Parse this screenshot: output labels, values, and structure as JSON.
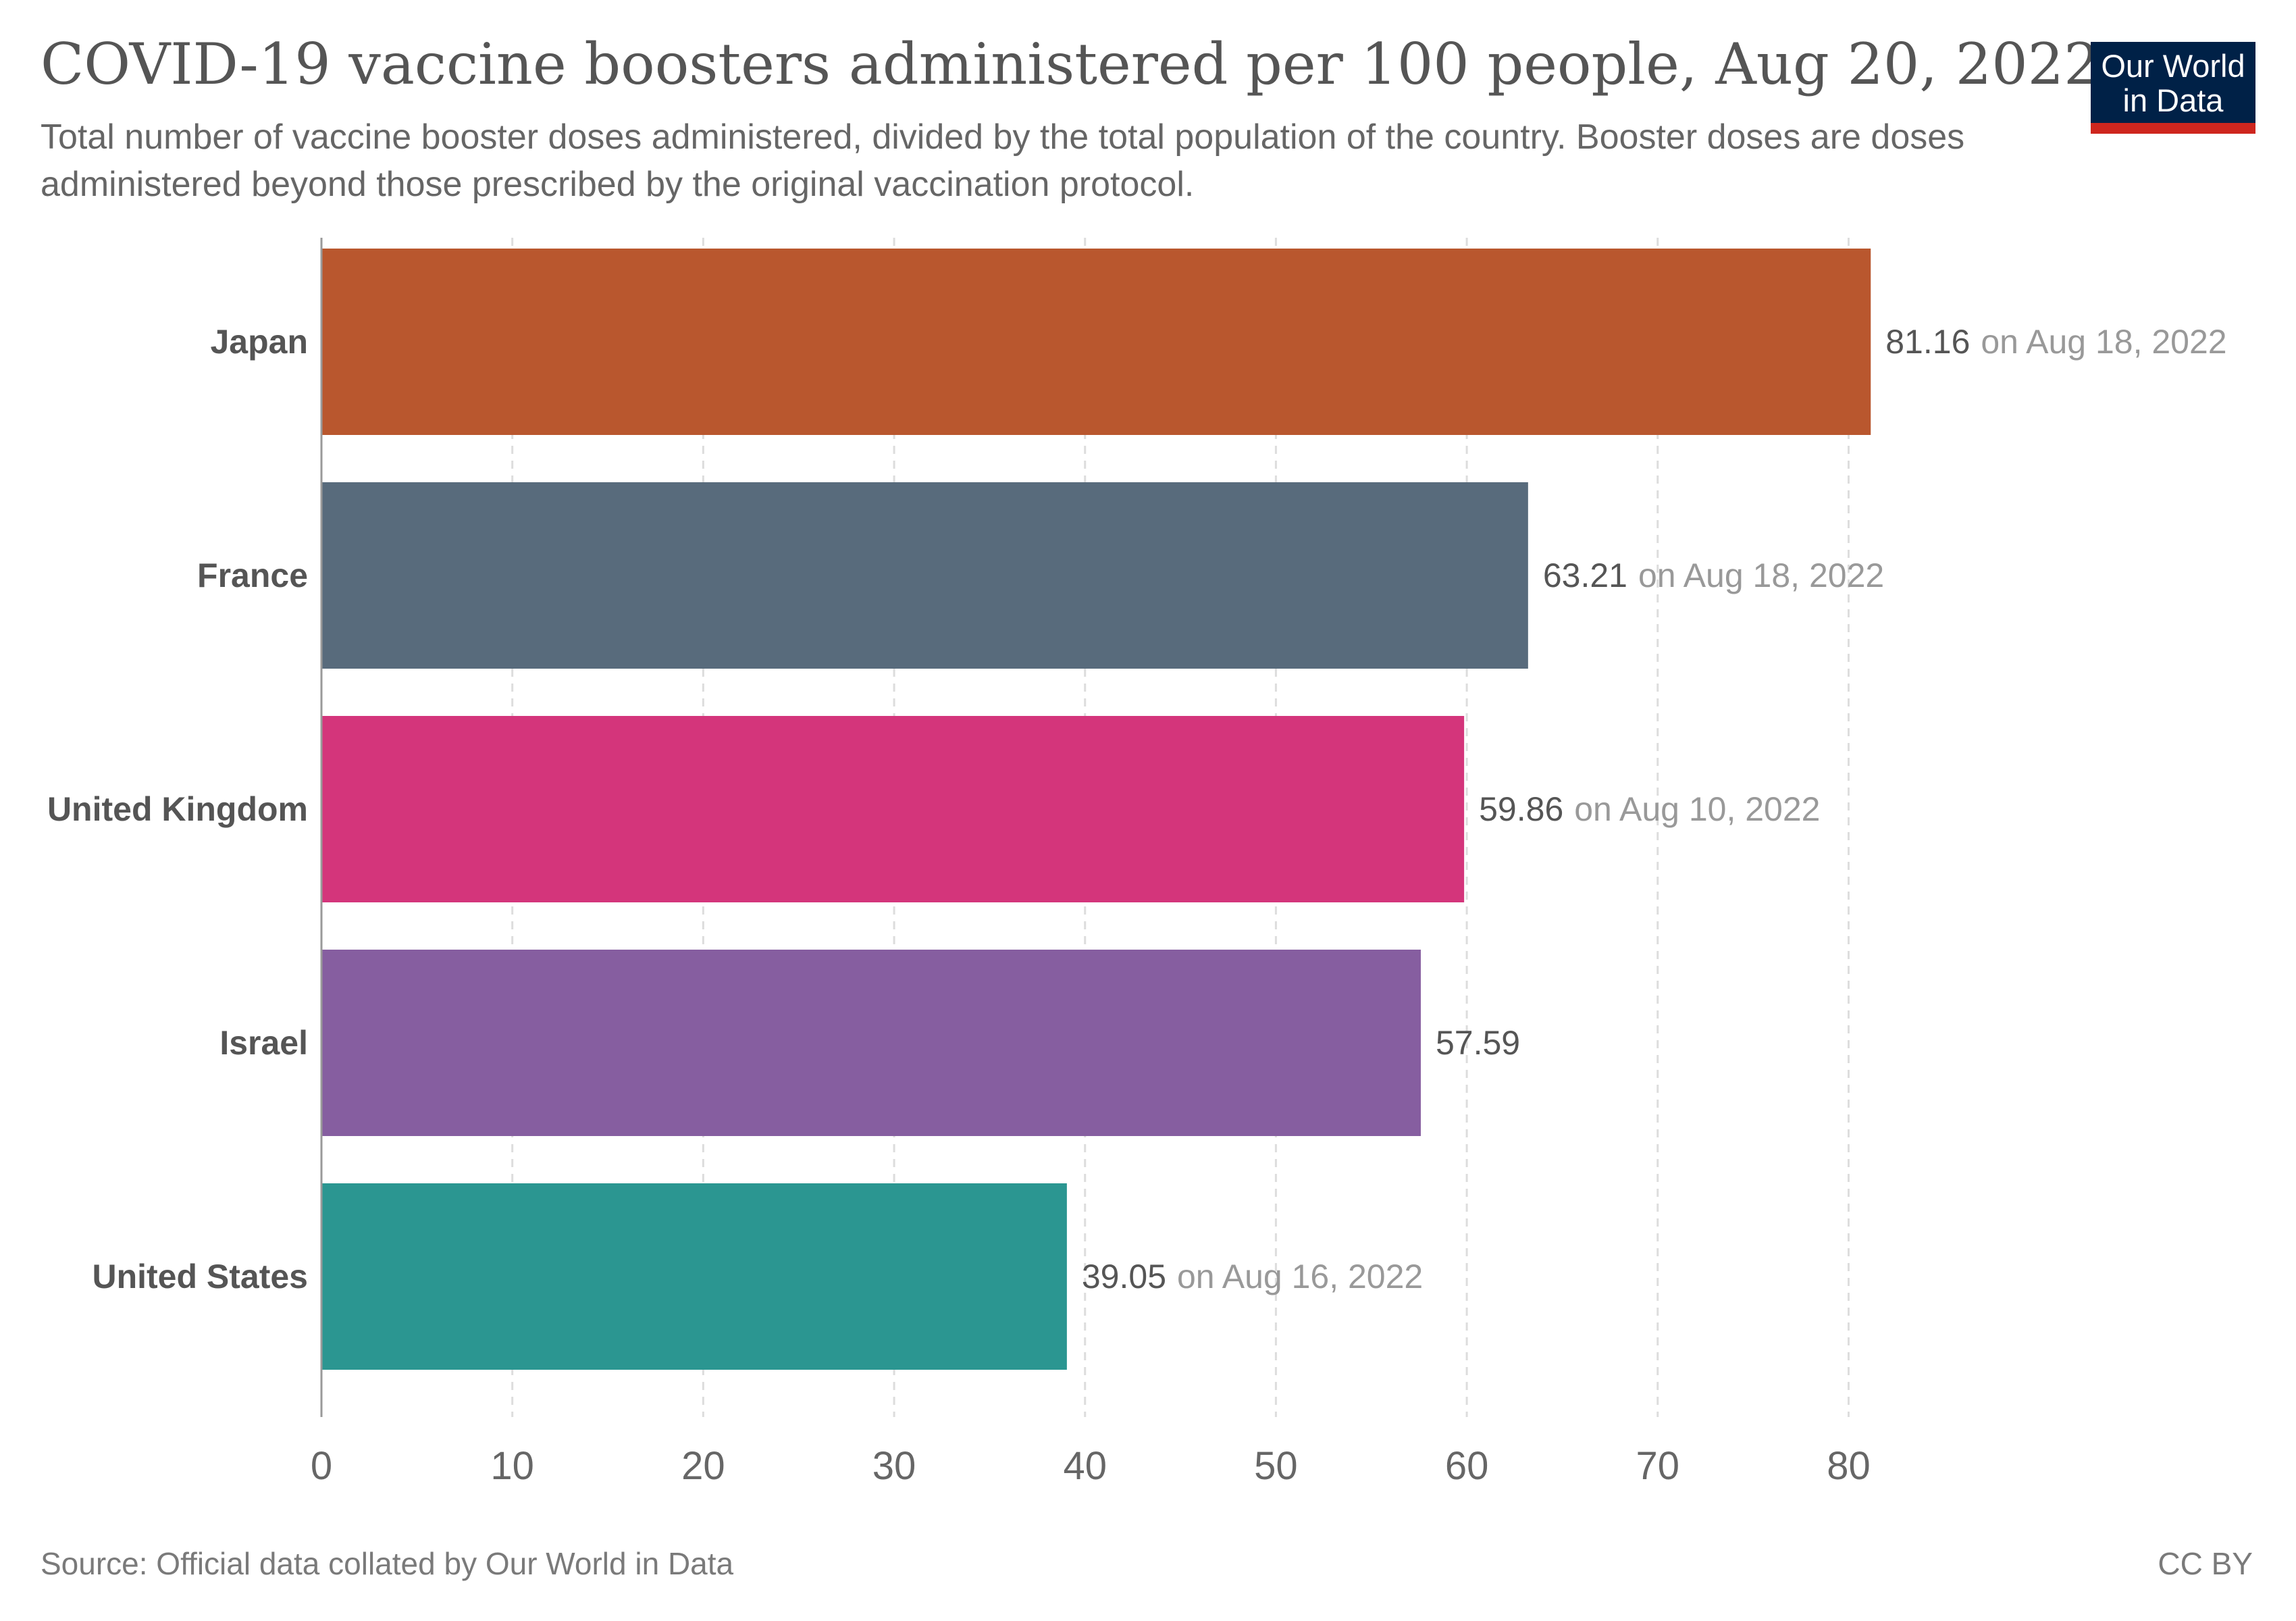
{
  "header": {
    "title": "COVID-19 vaccine boosters administered per 100 people, Aug 20, 2022",
    "subtitle": "Total number of vaccine booster doses administered, divided by the total population of the country. Booster doses are doses administered beyond those prescribed by the original vaccination protocol."
  },
  "logo": {
    "line1": "Our World",
    "line2": "in Data",
    "background": "#002147",
    "accent": "#ce261e"
  },
  "footer": {
    "source": "Source: Official data collated by Our World in Data",
    "license": "CC BY"
  },
  "chart_data": {
    "type": "bar",
    "orientation": "horizontal",
    "categories": [
      "Japan",
      "France",
      "United Kingdom",
      "Israel",
      "United States"
    ],
    "values": [
      81.16,
      63.21,
      59.86,
      57.59,
      39.05
    ],
    "value_labels": [
      "81.16",
      "63.21",
      "59.86",
      "57.59",
      "39.05"
    ],
    "date_notes": [
      "on Aug 18, 2022",
      "on Aug 18, 2022",
      "on Aug 10, 2022",
      "",
      "on Aug 16, 2022"
    ],
    "colors": [
      "#b9572e",
      "#586b7c",
      "#d4357b",
      "#865ea0",
      "#2b9691"
    ],
    "xlim": [
      0,
      82
    ],
    "xticks": [
      0,
      10,
      20,
      30,
      40,
      50,
      60,
      70,
      80
    ],
    "grid": true
  }
}
